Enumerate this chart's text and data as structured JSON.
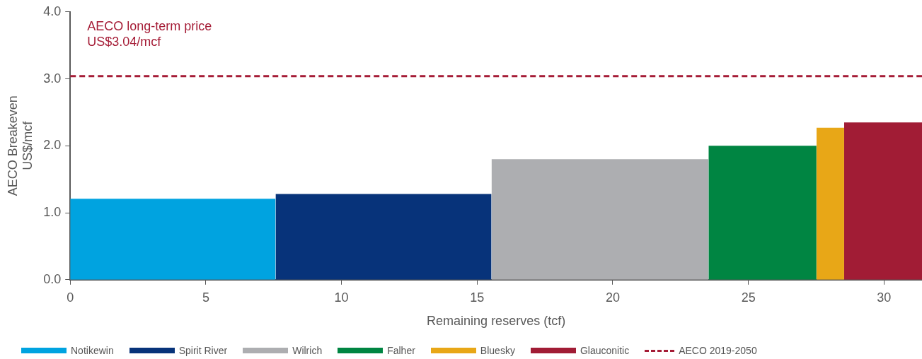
{
  "chart_data": {
    "type": "area",
    "xlabel": "Remaining reserves (tcf)",
    "ylabel": "AECO Breakeven\nUS$/mcf",
    "xlim": [
      0,
      31.4
    ],
    "xticks": [
      0,
      5,
      10,
      15,
      20,
      25,
      30
    ],
    "ylim": [
      0,
      4
    ],
    "yticks": [
      {
        "value": 0,
        "label": "0.0"
      },
      {
        "value": 1,
        "label": "1.0"
      },
      {
        "value": 2,
        "label": "2.0"
      },
      {
        "value": 3,
        "label": "3.0"
      },
      {
        "value": 4,
        "label": "4.0"
      }
    ],
    "grid": false,
    "legend": "bottom",
    "series": [
      {
        "name": "Notikewin",
        "color": "#00a3e0",
        "x": [
          0,
          7.57
        ],
        "values": [
          1.21,
          1.21
        ]
      },
      {
        "name": "Spirit River",
        "color": "#07337a",
        "x": [
          7.57,
          15.53
        ],
        "values": [
          1.28,
          1.28
        ]
      },
      {
        "name": "Wilrich",
        "color": "#adaeb1",
        "x": [
          15.53,
          23.53
        ],
        "values": [
          1.8,
          1.8
        ]
      },
      {
        "name": "Falher",
        "color": "#008542",
        "x": [
          23.53,
          27.51
        ],
        "values": [
          2.0,
          2.0
        ]
      },
      {
        "name": "Bluesky",
        "color": "#e8a717",
        "x": [
          27.51,
          28.53
        ],
        "values": [
          2.27,
          2.27
        ]
      },
      {
        "name": "Glauconitic",
        "color": "#a11c35",
        "x": [
          28.53,
          31.4
        ],
        "values": [
          2.35,
          2.35
        ]
      }
    ],
    "ref_lines": [
      {
        "axis": "y",
        "value": 3.04,
        "label": "AECO 2019-2050",
        "color": "#a51c36",
        "line_style": "dashed"
      }
    ],
    "annotations": [
      "AECO long-term price\nUS$3.04/mcf"
    ]
  }
}
